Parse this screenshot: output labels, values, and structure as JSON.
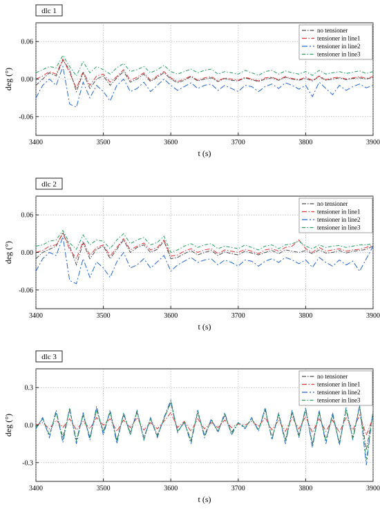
{
  "chart_data": [
    {
      "type": "line",
      "panel_label": "dlc 1",
      "xlabel": "t (s)",
      "ylabel": "deg (°)",
      "xlim": [
        3400,
        3900
      ],
      "ylim": [
        -0.09,
        0.09
      ],
      "xticks": [
        3400,
        3500,
        3600,
        3700,
        3800,
        3900
      ],
      "yticks": [
        -0.06,
        0,
        0.06
      ],
      "ytick_labels": [
        "-0.06",
        "0.00",
        "0.06"
      ],
      "grid": true,
      "legend_position": "top-right",
      "x": [
        3400,
        3410,
        3420,
        3430,
        3440,
        3450,
        3460,
        3470,
        3480,
        3490,
        3500,
        3510,
        3520,
        3530,
        3540,
        3550,
        3560,
        3570,
        3580,
        3590,
        3600,
        3610,
        3620,
        3630,
        3640,
        3650,
        3660,
        3670,
        3680,
        3690,
        3700,
        3710,
        3720,
        3730,
        3740,
        3750,
        3760,
        3770,
        3780,
        3790,
        3800,
        3810,
        3820,
        3830,
        3840,
        3850,
        3860,
        3870,
        3880,
        3890,
        3900
      ],
      "series": [
        {
          "name": "no tensioner",
          "color": "#4a4a4a",
          "values": [
            -0.01,
            0.0,
            0.01,
            0.005,
            0.03,
            0.015,
            -0.02,
            0.01,
            -0.015,
            0.0,
            0.005,
            -0.01,
            0.002,
            0.012,
            -0.005,
            0.0,
            0.008,
            -0.004,
            0.003,
            0.01,
            0.0,
            -0.006,
            -0.002,
            0.004,
            -0.003,
            0.0,
            0.002,
            -0.004,
            0.001,
            -0.002,
            -0.003,
            0.002,
            -0.001,
            -0.004,
            0.0,
            0.002,
            -0.002,
            0.003,
            0.0,
            -0.002,
            0.001,
            -0.003,
            0.004,
            -0.002,
            0.0,
            0.002,
            -0.001,
            0.001,
            0.002,
            0.0,
            0.003
          ]
        },
        {
          "name": "tensioner in line1",
          "color": "#e03030",
          "values": [
            0.0,
            0.005,
            0.012,
            0.008,
            0.032,
            0.01,
            -0.015,
            0.012,
            -0.01,
            0.005,
            0.008,
            -0.005,
            0.004,
            0.015,
            -0.002,
            0.003,
            0.01,
            -0.002,
            0.005,
            0.012,
            0.002,
            -0.004,
            0.0,
            0.005,
            -0.002,
            0.002,
            0.004,
            -0.003,
            0.002,
            0.0,
            -0.002,
            0.003,
            0.0,
            -0.003,
            0.002,
            0.003,
            -0.001,
            0.004,
            0.001,
            -0.001,
            0.003,
            -0.002,
            0.005,
            -0.001,
            0.002,
            0.003,
            0.0,
            0.002,
            0.004,
            0.001,
            0.004
          ]
        },
        {
          "name": "tensioner in line2",
          "color": "#1f63d6",
          "values": [
            -0.03,
            -0.01,
            0.0,
            -0.01,
            0.02,
            -0.04,
            -0.045,
            -0.005,
            -0.03,
            -0.01,
            -0.02,
            -0.035,
            -0.01,
            0.0,
            -0.02,
            -0.015,
            -0.005,
            -0.02,
            -0.01,
            0.0,
            -0.01,
            -0.018,
            -0.012,
            -0.006,
            -0.015,
            -0.01,
            -0.008,
            -0.018,
            -0.01,
            -0.015,
            -0.02,
            -0.01,
            -0.012,
            -0.02,
            -0.012,
            -0.008,
            -0.015,
            -0.006,
            -0.01,
            -0.016,
            -0.01,
            -0.028,
            -0.005,
            -0.015,
            -0.025,
            -0.01,
            -0.018,
            -0.012,
            -0.008,
            -0.014,
            -0.01
          ]
        },
        {
          "name": "tensioner in line3",
          "color": "#1f9e5a",
          "values": [
            0.01,
            0.015,
            0.02,
            0.018,
            0.038,
            0.02,
            0.005,
            0.028,
            0.01,
            0.02,
            0.015,
            0.008,
            0.018,
            0.025,
            0.012,
            0.015,
            0.02,
            0.01,
            0.015,
            0.022,
            0.012,
            0.008,
            0.012,
            0.016,
            0.01,
            0.014,
            0.016,
            0.008,
            0.012,
            0.01,
            0.008,
            0.014,
            0.01,
            0.006,
            0.012,
            0.014,
            0.008,
            0.013,
            0.01,
            0.008,
            0.012,
            0.006,
            0.014,
            0.008,
            0.01,
            0.012,
            0.009,
            0.011,
            0.013,
            0.009,
            0.012
          ]
        }
      ]
    },
    {
      "type": "line",
      "panel_label": "dlc 2",
      "xlabel": "t (s)",
      "ylabel": "deg (°)",
      "xlim": [
        3400,
        3900
      ],
      "ylim": [
        -0.09,
        0.09
      ],
      "xticks": [
        3400,
        3500,
        3600,
        3700,
        3800,
        3900
      ],
      "yticks": [
        -0.06,
        0,
        0.06
      ],
      "ytick_labels": [
        "-0.06",
        "0.00",
        "0.06"
      ],
      "grid": true,
      "legend_position": "top-right",
      "x": [
        3400,
        3410,
        3420,
        3430,
        3440,
        3450,
        3460,
        3470,
        3480,
        3490,
        3500,
        3510,
        3520,
        3530,
        3540,
        3550,
        3560,
        3570,
        3580,
        3590,
        3600,
        3610,
        3620,
        3630,
        3640,
        3650,
        3660,
        3670,
        3680,
        3690,
        3700,
        3710,
        3720,
        3730,
        3740,
        3750,
        3760,
        3770,
        3780,
        3790,
        3800,
        3810,
        3820,
        3830,
        3840,
        3850,
        3860,
        3870,
        3880,
        3890,
        3900
      ],
      "series": [
        {
          "name": "no tensioner",
          "color": "#4a4a4a",
          "values": [
            -0.01,
            0.0,
            0.005,
            0.01,
            0.032,
            0.01,
            -0.02,
            0.015,
            -0.01,
            0.005,
            0.01,
            -0.01,
            0.005,
            0.02,
            0.0,
            0.008,
            0.012,
            0.0,
            0.005,
            0.018,
            -0.01,
            -0.008,
            -0.002,
            0.003,
            -0.004,
            0.0,
            0.003,
            -0.005,
            0.001,
            -0.002,
            -0.004,
            0.002,
            -0.001,
            -0.004,
            0.0,
            0.003,
            -0.002,
            0.004,
            0.002,
            0.0,
            0.003,
            -0.002,
            0.004,
            -0.001,
            0.0,
            0.003,
            -0.001,
            0.002,
            0.003,
            0.005,
            0.01
          ]
        },
        {
          "name": "tensioner in line1",
          "color": "#e03030",
          "values": [
            0.0,
            0.003,
            0.01,
            0.012,
            0.03,
            0.005,
            -0.01,
            0.018,
            -0.005,
            0.008,
            0.012,
            -0.006,
            0.008,
            0.022,
            0.004,
            0.01,
            0.015,
            0.004,
            0.008,
            0.02,
            -0.006,
            -0.004,
            0.002,
            0.006,
            0.0,
            0.004,
            0.006,
            -0.002,
            0.004,
            0.002,
            0.0,
            0.005,
            0.002,
            -0.002,
            0.004,
            0.006,
            0.002,
            0.008,
            0.01,
            0.02,
            0.006,
            0.0,
            0.008,
            0.002,
            0.004,
            0.006,
            0.002,
            0.004,
            0.005,
            0.008,
            0.012
          ]
        },
        {
          "name": "tensioner in line2",
          "color": "#1f63d6",
          "values": [
            -0.03,
            -0.01,
            0.0,
            -0.005,
            0.025,
            -0.045,
            -0.05,
            -0.01,
            -0.04,
            -0.015,
            -0.025,
            -0.04,
            -0.015,
            0.0,
            -0.025,
            -0.02,
            -0.01,
            -0.025,
            -0.015,
            -0.005,
            -0.03,
            -0.02,
            -0.014,
            -0.008,
            -0.016,
            -0.012,
            -0.01,
            -0.02,
            -0.012,
            -0.016,
            -0.022,
            -0.012,
            -0.014,
            -0.022,
            -0.014,
            -0.01,
            -0.016,
            -0.008,
            -0.012,
            -0.018,
            -0.012,
            -0.024,
            -0.008,
            -0.016,
            -0.022,
            -0.012,
            -0.02,
            -0.014,
            -0.03,
            -0.01,
            0.01
          ]
        },
        {
          "name": "tensioner in line3",
          "color": "#1f9e5a",
          "values": [
            0.01,
            0.012,
            0.018,
            0.02,
            0.035,
            0.015,
            0.005,
            0.028,
            0.012,
            0.02,
            0.018,
            0.006,
            0.02,
            0.03,
            0.014,
            0.02,
            0.024,
            0.012,
            0.016,
            0.026,
            0.0,
            0.004,
            0.01,
            0.014,
            0.008,
            0.012,
            0.014,
            0.006,
            0.01,
            0.008,
            0.006,
            0.012,
            0.008,
            0.004,
            0.01,
            0.012,
            0.006,
            0.012,
            0.014,
            0.018,
            0.01,
            0.006,
            0.012,
            0.008,
            0.01,
            0.011,
            0.008,
            0.01,
            0.012,
            0.012,
            0.014
          ]
        }
      ]
    },
    {
      "type": "line",
      "panel_label": "dlc 3",
      "xlabel": "t (s)",
      "ylabel": "deg (°)",
      "xlim": [
        3400,
        3900
      ],
      "ylim": [
        -0.45,
        0.45
      ],
      "xticks": [
        3400,
        3500,
        3600,
        3700,
        3800,
        3900
      ],
      "yticks": [
        -0.3,
        0,
        0.3
      ],
      "ytick_labels": [
        "-0.3",
        "0.0",
        "0.3"
      ],
      "grid": true,
      "legend_position": "top-right",
      "x": [
        3400,
        3410,
        3420,
        3430,
        3440,
        3450,
        3460,
        3470,
        3480,
        3490,
        3500,
        3510,
        3520,
        3530,
        3540,
        3550,
        3560,
        3570,
        3580,
        3590,
        3600,
        3610,
        3620,
        3630,
        3640,
        3650,
        3660,
        3670,
        3680,
        3690,
        3700,
        3710,
        3720,
        3730,
        3740,
        3750,
        3760,
        3770,
        3780,
        3790,
        3800,
        3810,
        3820,
        3830,
        3840,
        3850,
        3860,
        3870,
        3880,
        3890,
        3900
      ],
      "series": [
        {
          "name": "no tensioner",
          "color": "#4a4a4a",
          "values": [
            -0.02,
            0.05,
            -0.08,
            0.1,
            -0.1,
            0.12,
            -0.12,
            0.08,
            -0.1,
            0.12,
            -0.05,
            0.1,
            -0.12,
            0.08,
            -0.06,
            0.1,
            -0.1,
            0.05,
            -0.08,
            0.05,
            0.18,
            -0.05,
            0.02,
            -0.12,
            0.1,
            -0.08,
            0.04,
            -0.05,
            0.08,
            -0.06,
            0.02,
            -0.02,
            0.05,
            -0.04,
            0.12,
            -0.1,
            0.08,
            -0.12,
            0.1,
            -0.08,
            0.12,
            -0.15,
            0.1,
            -0.12,
            0.08,
            -0.14,
            0.12,
            -0.1,
            0.15,
            -0.2,
            0.1
          ]
        },
        {
          "name": "tensioner in line1",
          "color": "#e03030",
          "values": [
            0.0,
            0.02,
            -0.03,
            0.04,
            -0.02,
            0.05,
            -0.04,
            0.03,
            -0.03,
            0.06,
            0.0,
            0.05,
            -0.05,
            0.04,
            -0.02,
            0.06,
            -0.04,
            0.02,
            -0.03,
            0.03,
            0.1,
            -0.02,
            0.03,
            -0.05,
            0.05,
            -0.03,
            0.02,
            -0.02,
            0.04,
            -0.02,
            0.01,
            0.0,
            0.03,
            -0.01,
            0.06,
            -0.04,
            0.04,
            -0.05,
            0.06,
            -0.03,
            0.07,
            -0.06,
            0.05,
            -0.05,
            0.04,
            -0.06,
            0.06,
            -0.04,
            0.08,
            -0.08,
            0.06
          ]
        },
        {
          "name": "tensioner in line2",
          "color": "#1f63d6",
          "values": [
            -0.03,
            0.06,
            -0.1,
            0.12,
            -0.14,
            0.14,
            -0.15,
            0.1,
            -0.12,
            0.15,
            -0.08,
            0.12,
            -0.15,
            0.1,
            -0.08,
            0.12,
            -0.12,
            0.06,
            -0.1,
            0.06,
            0.2,
            -0.06,
            0.03,
            -0.15,
            0.12,
            -0.1,
            0.05,
            -0.06,
            0.1,
            -0.08,
            0.02,
            -0.03,
            0.06,
            -0.05,
            0.14,
            -0.12,
            0.1,
            -0.15,
            0.12,
            -0.1,
            0.14,
            -0.18,
            0.12,
            -0.15,
            0.1,
            -0.16,
            0.14,
            -0.12,
            0.16,
            -0.32,
            0.12
          ]
        },
        {
          "name": "tensioner in line3",
          "color": "#1f9e5a",
          "values": [
            -0.02,
            0.05,
            -0.08,
            0.1,
            -0.12,
            0.13,
            -0.13,
            0.09,
            -0.1,
            0.13,
            -0.06,
            0.11,
            -0.13,
            0.09,
            -0.07,
            0.11,
            -0.11,
            0.05,
            -0.09,
            0.05,
            0.19,
            -0.05,
            0.02,
            -0.13,
            0.11,
            -0.09,
            0.04,
            -0.05,
            0.09,
            -0.07,
            0.02,
            -0.02,
            0.05,
            -0.04,
            0.13,
            -0.11,
            0.09,
            -0.13,
            0.11,
            -0.09,
            0.13,
            -0.16,
            0.11,
            -0.13,
            0.09,
            -0.15,
            0.13,
            -0.11,
            0.15,
            -0.28,
            0.11
          ]
        }
      ]
    }
  ]
}
